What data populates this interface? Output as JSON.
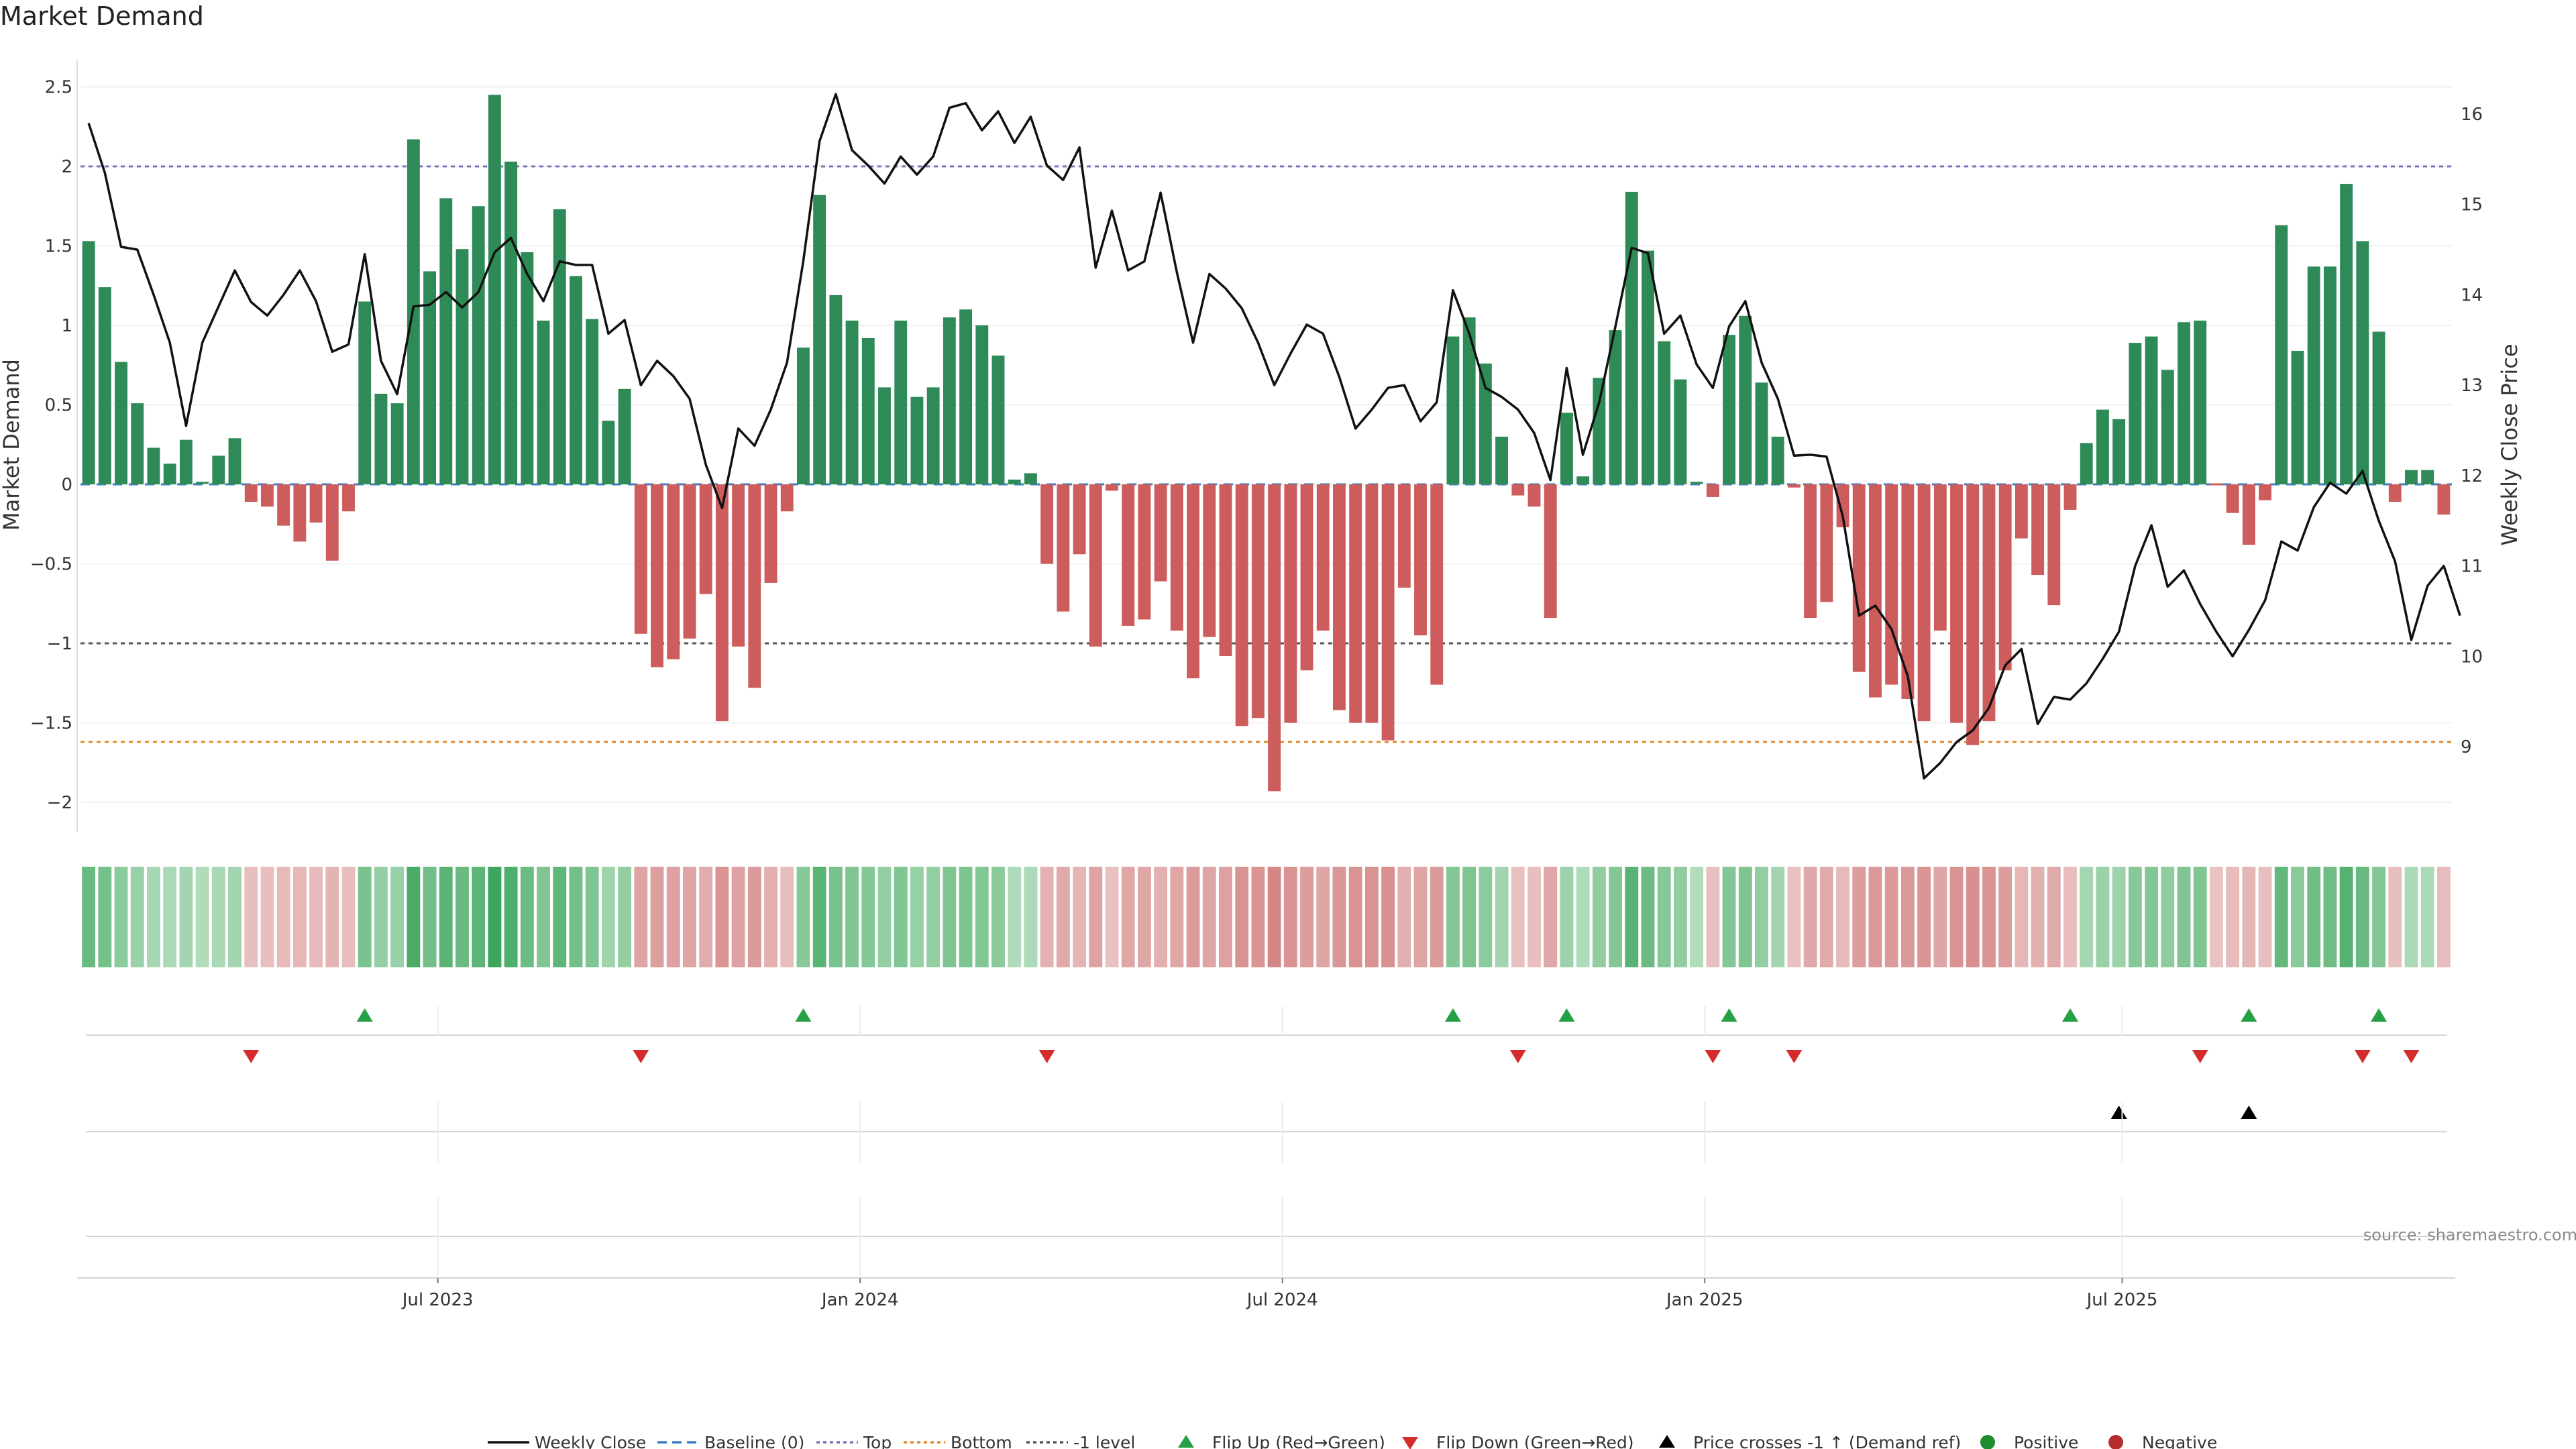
{
  "title": "Market Demand",
  "source": "source: sharemaestro.com",
  "chart_data": {
    "type": "bar",
    "title": "Market Demand",
    "ylabel_left": "Market Demand",
    "ylabel_right": "Weekly Close Price",
    "ylim_left": [
      -2.15,
      2.6
    ],
    "ylim_right": [
      8.3,
      16.4
    ],
    "yticks_left": [
      2.5,
      2,
      1.5,
      1,
      0.5,
      0,
      -0.5,
      -1,
      -1.5,
      -2
    ],
    "ytick_labels_left": [
      "2.5",
      "2",
      "1.5",
      "1",
      "0.5",
      "0",
      "−0.5",
      "−1",
      "−1.5",
      "−2"
    ],
    "yticks_right": [
      16,
      15,
      14,
      13,
      12,
      11,
      10,
      9
    ],
    "xtick_labels": [
      "Jul 2023",
      "Jan 2024",
      "Jul 2024",
      "Jan 2025",
      "Jul 2025"
    ],
    "xtick_weeks": [
      21.5,
      47.5,
      73.5,
      99.5,
      125.2
    ],
    "levels": {
      "top": 2.0,
      "bottom": -1.62,
      "minus_one": -1.0,
      "baseline": 0
    },
    "demand": [
      1.53,
      1.24,
      0.77,
      0.51,
      0.23,
      0.13,
      0.28,
      0.01,
      0.18,
      0.29,
      -0.11,
      -0.14,
      -0.26,
      -0.36,
      -0.24,
      -0.48,
      -0.17,
      1.15,
      0.57,
      0.51,
      2.17,
      1.34,
      1.8,
      1.48,
      1.75,
      2.45,
      2.03,
      1.46,
      1.03,
      1.73,
      1.31,
      1.04,
      0.4,
      0.6,
      -0.94,
      -1.15,
      -1.1,
      -0.97,
      -0.69,
      -1.49,
      -1.02,
      -1.28,
      -0.62,
      -0.17,
      0.86,
      1.82,
      1.19,
      1.03,
      0.92,
      0.61,
      1.03,
      0.55,
      0.61,
      1.05,
      1.1,
      1.0,
      0.81,
      0.03,
      0.07,
      -0.5,
      -0.8,
      -0.44,
      -1.02,
      -0.04,
      -0.89,
      -0.85,
      -0.61,
      -0.92,
      -1.22,
      -0.96,
      -1.08,
      -1.52,
      -1.47,
      -1.93,
      -1.5,
      -1.17,
      -0.92,
      -1.42,
      -1.5,
      -1.5,
      -1.61,
      -0.65,
      -0.95,
      -1.26,
      0.93,
      1.05,
      0.76,
      0.3,
      -0.07,
      -0.14,
      -0.84,
      0.45,
      0.05,
      0.67,
      0.97,
      1.84,
      1.47,
      0.9,
      0.66,
      0.01,
      -0.08,
      0.94,
      1.06,
      0.64,
      0.3,
      -0.02,
      -0.84,
      -0.74,
      -0.27,
      -1.18,
      -1.34,
      -1.26,
      -1.35,
      -1.49,
      -0.92,
      -1.5,
      -1.64,
      -1.49,
      -1.17,
      -0.34,
      -0.57,
      -0.76,
      -0.16,
      0.26,
      0.47,
      0.41,
      0.89,
      0.93,
      0.72,
      1.02,
      1.03,
      -0.01,
      -0.18,
      -0.38,
      -0.1,
      1.63,
      0.84,
      1.37,
      1.37,
      1.89,
      1.53,
      0.96,
      -0.11,
      0.09,
      0.09,
      -0.19
    ],
    "close": [
      15.9,
      15.35,
      14.53,
      14.5,
      14.0,
      13.47,
      12.55,
      13.47,
      13.87,
      14.27,
      13.92,
      13.77,
      14.0,
      14.27,
      13.93,
      13.37,
      13.45,
      14.45,
      13.27,
      12.9,
      13.87,
      13.89,
      14.03,
      13.86,
      14.03,
      14.47,
      14.63,
      14.23,
      13.93,
      14.37,
      14.33,
      14.33,
      13.57,
      13.72,
      13.0,
      13.27,
      13.1,
      12.85,
      12.12,
      11.64,
      12.52,
      12.33,
      12.73,
      13.25,
      14.37,
      15.7,
      16.22,
      15.6,
      15.43,
      15.23,
      15.53,
      15.33,
      15.53,
      16.07,
      16.12,
      15.82,
      16.03,
      15.68,
      15.97,
      15.43,
      15.27,
      15.63,
      14.3,
      14.93,
      14.27,
      14.37,
      15.13,
      14.25,
      13.47,
      14.23,
      14.07,
      13.85,
      13.47,
      13.0,
      13.35,
      13.67,
      13.57,
      13.09,
      12.52,
      12.73,
      12.97,
      13.0,
      12.6,
      12.81,
      14.05,
      13.57,
      12.97,
      12.87,
      12.73,
      12.47,
      11.95,
      13.19,
      12.23,
      12.81,
      13.65,
      14.52,
      14.46,
      13.57,
      13.77,
      13.23,
      12.97,
      13.65,
      13.93,
      13.25,
      12.85,
      12.22,
      12.23,
      12.21,
      11.55,
      10.45,
      10.56,
      10.3,
      9.78,
      8.65,
      8.82,
      9.05,
      9.18,
      9.43,
      9.9,
      10.08,
      9.25,
      9.55,
      9.52,
      9.7,
      9.97,
      10.27,
      11.0,
      11.45,
      10.77,
      10.95,
      10.58,
      10.27,
      10.0,
      10.29,
      10.62,
      11.27,
      11.17,
      11.65,
      11.92,
      11.8,
      12.05,
      11.5,
      11.05,
      10.18,
      10.78,
      11.0,
      10.45
    ],
    "flip_up_weeks": [
      17,
      44,
      84,
      91,
      101,
      122,
      133,
      141
    ],
    "flip_down_weeks": [
      10,
      34,
      59,
      88,
      100,
      105,
      130,
      140,
      143
    ],
    "price_cross_weeks": [
      125,
      133
    ],
    "legend": [
      "Weekly Close",
      "Baseline (0)",
      "Top",
      "Bottom",
      "-1 level",
      "Flip Up (Red→Green)",
      "Flip Down (Green→Red)",
      "Price crosses -1 ↑ (Demand ref)",
      "Positive",
      "Negative"
    ],
    "colors": {
      "positive": "#2e8b57",
      "negative": "#cd5c5c",
      "close": "#111111",
      "top": "#7777bb",
      "bottom": "#e08a24",
      "minus_one": "#555555",
      "baseline": "#3b7dc1",
      "flip_up": "#27a045",
      "flip_down": "#d42b2b",
      "cross": "#000000",
      "positive_dot": "#1e8c2e",
      "negative_dot": "#b62c2c"
    }
  }
}
